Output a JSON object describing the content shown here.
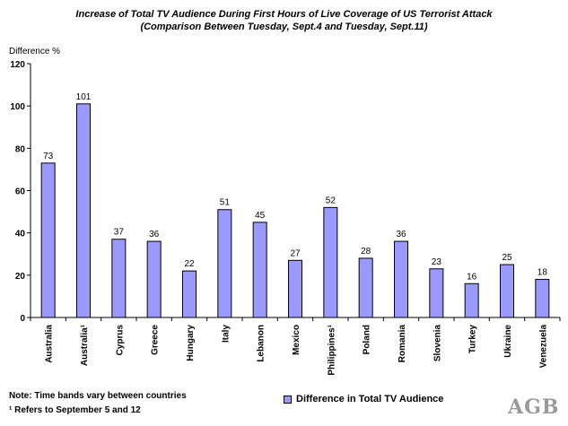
{
  "title_line1": "Increase of Total TV Audience During First Hours of Live Coverage of US Terrorist Attack",
  "title_line2": "(Comparison Between Tuesday, Sept.4 and Tuesday, Sept.11)",
  "note_line1": "Note: Time bands vary between countries",
  "note_line2": "¹ Refers to September 5 and 12",
  "logo_text": "AGB",
  "colors": {
    "bar": "#9999ff",
    "bar_outline": "#000000",
    "logo": "#9a9a9a"
  },
  "chart_data": {
    "type": "bar",
    "ylabel": "Difference %",
    "ylim": [
      0,
      120
    ],
    "yticks": [
      0,
      20,
      40,
      60,
      80,
      100,
      120
    ],
    "grid": false,
    "legend_position": "bottom",
    "categories": [
      "Australia",
      "Australia¹",
      "Cyprus",
      "Greece",
      "Hungary",
      "Italy",
      "Lebanon",
      "Mexico",
      "Philippines¹",
      "Poland",
      "Romania",
      "Slovenia",
      "Turkey",
      "Ukraine",
      "Venezuela"
    ],
    "series": [
      {
        "name": "Difference in Total TV Audience",
        "values": [
          73,
          101,
          37,
          36,
          22,
          51,
          45,
          27,
          52,
          28,
          36,
          23,
          16,
          25,
          18
        ]
      }
    ]
  }
}
